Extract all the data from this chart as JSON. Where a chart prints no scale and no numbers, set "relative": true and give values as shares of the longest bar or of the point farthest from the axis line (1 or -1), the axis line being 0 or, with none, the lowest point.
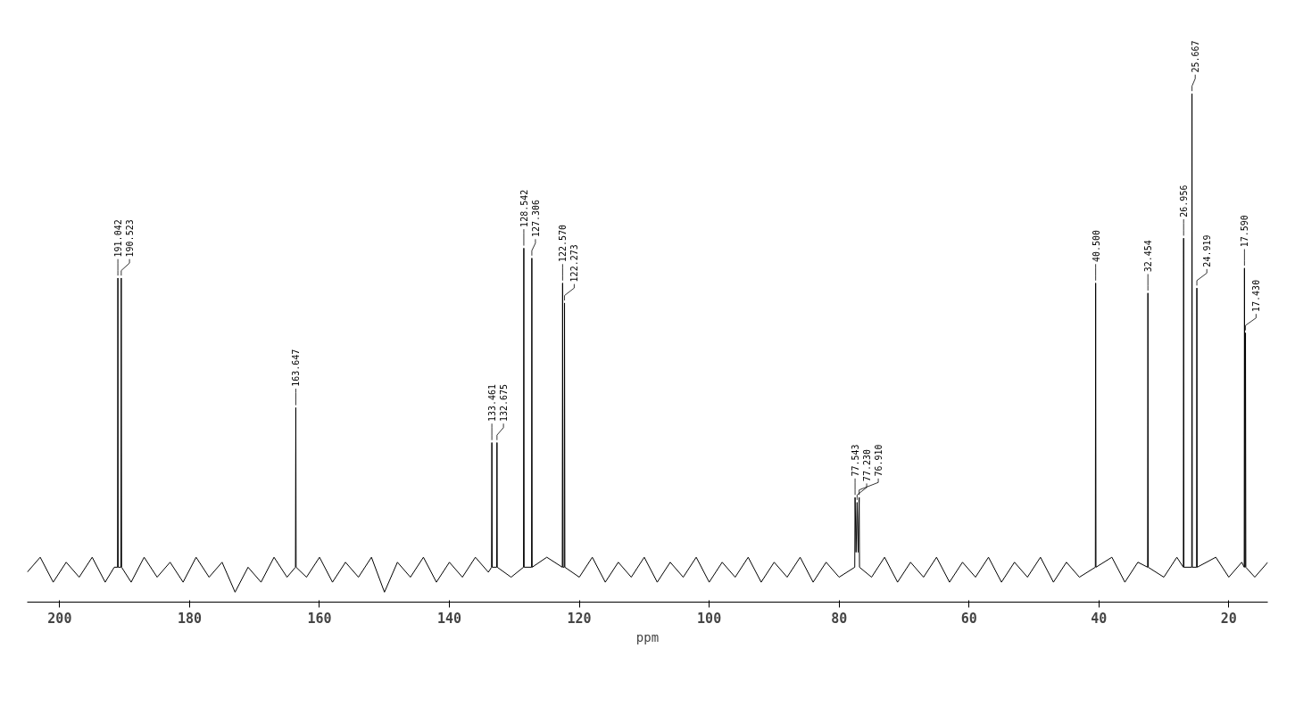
{
  "chart_data": {
    "type": "line",
    "relative": true,
    "xlabel": "ppm",
    "xlim": [
      205,
      14
    ],
    "xticks": [
      200,
      180,
      160,
      140,
      120,
      100,
      80,
      60,
      40,
      20
    ],
    "line_style": "solid",
    "series": [
      {
        "color": "#000000",
        "x": [
          205,
          203,
          201,
          199,
          197,
          195,
          193,
          191.6,
          191.09,
          191.042,
          191.0,
          190.57,
          190.523,
          190.47,
          189,
          187,
          185,
          183,
          181,
          179,
          177,
          175,
          173,
          171,
          169,
          167,
          165,
          163.7,
          163.647,
          163.6,
          162,
          160,
          158,
          156,
          154,
          152,
          150,
          148,
          146,
          144,
          142,
          140,
          138,
          136,
          134,
          133.51,
          133.461,
          133.41,
          132.72,
          132.675,
          132.63,
          130.5,
          128.59,
          128.542,
          128.49,
          127.35,
          127.306,
          127.26,
          125,
          122.62,
          122.57,
          122.52,
          122.32,
          122.273,
          122.22,
          120,
          118,
          116,
          114,
          112,
          110,
          108,
          106,
          104,
          102,
          100,
          98,
          96,
          94,
          92,
          90,
          88,
          86,
          84,
          82,
          80,
          77.59,
          77.543,
          77.39,
          77.23,
          77.07,
          76.91,
          76.86,
          75,
          73,
          71,
          69,
          67,
          65,
          63,
          61,
          59,
          57,
          55,
          53,
          51,
          49,
          47,
          45,
          43,
          40.55,
          40.5,
          40.45,
          38,
          36,
          34,
          32.5,
          32.454,
          32.41,
          30,
          28,
          27.0,
          26.956,
          26.91,
          25.71,
          25.667,
          25.62,
          24.96,
          24.919,
          24.87,
          22,
          20,
          18,
          17.63,
          17.59,
          17.51,
          17.43,
          17.38,
          16,
          14
        ],
        "values": [
          0.04,
          0.07,
          0.02,
          0.06,
          0.03,
          0.07,
          0.02,
          0.05,
          0.05,
          0.63,
          0.05,
          0.05,
          0.63,
          0.05,
          0.02,
          0.07,
          0.03,
          0.06,
          0.02,
          0.07,
          0.03,
          0.06,
          0.0,
          0.05,
          0.02,
          0.07,
          0.03,
          0.05,
          0.37,
          0.05,
          0.03,
          0.07,
          0.02,
          0.06,
          0.03,
          0.07,
          0.0,
          0.06,
          0.03,
          0.07,
          0.02,
          0.06,
          0.03,
          0.07,
          0.04,
          0.05,
          0.3,
          0.05,
          0.05,
          0.3,
          0.05,
          0.03,
          0.05,
          0.69,
          0.05,
          0.05,
          0.67,
          0.05,
          0.07,
          0.05,
          0.62,
          0.05,
          0.05,
          0.58,
          0.05,
          0.03,
          0.07,
          0.02,
          0.06,
          0.03,
          0.07,
          0.02,
          0.06,
          0.03,
          0.07,
          0.02,
          0.06,
          0.03,
          0.07,
          0.02,
          0.06,
          0.03,
          0.07,
          0.02,
          0.06,
          0.03,
          0.05,
          0.19,
          0.08,
          0.18,
          0.08,
          0.19,
          0.05,
          0.03,
          0.07,
          0.02,
          0.06,
          0.03,
          0.07,
          0.02,
          0.06,
          0.03,
          0.07,
          0.02,
          0.06,
          0.03,
          0.07,
          0.02,
          0.06,
          0.03,
          0.05,
          0.62,
          0.05,
          0.07,
          0.02,
          0.06,
          0.05,
          0.6,
          0.05,
          0.03,
          0.07,
          0.05,
          0.71,
          0.05,
          0.05,
          1,
          0.05,
          0.05,
          0.61,
          0.05,
          0.07,
          0.03,
          0.06,
          0.05,
          0.65,
          0.05,
          0.52,
          0.05,
          0.03,
          0.06
        ]
      }
    ],
    "annotations": [
      {
        "text": "191.042",
        "x": 191.042,
        "y": 0.63
      },
      {
        "text": "190.523",
        "x": 190.523,
        "y": 0.63
      },
      {
        "text": "163.647",
        "x": 163.647,
        "y": 0.37
      },
      {
        "text": "133.461",
        "x": 133.461,
        "y": 0.3
      },
      {
        "text": "132.675",
        "x": 132.675,
        "y": 0.3
      },
      {
        "text": "128.542",
        "x": 128.542,
        "y": 0.69
      },
      {
        "text": "127.306",
        "x": 127.306,
        "y": 0.67
      },
      {
        "text": "122.570",
        "x": 122.57,
        "y": 0.62
      },
      {
        "text": "122.273",
        "x": 122.273,
        "y": 0.58
      },
      {
        "text": "77.543",
        "x": 77.543,
        "y": 0.19
      },
      {
        "text": "77.230",
        "x": 77.23,
        "y": 0.18
      },
      {
        "text": "76.910",
        "x": 76.91,
        "y": 0.19
      },
      {
        "text": "40.500",
        "x": 40.5,
        "y": 0.62
      },
      {
        "text": "32.454",
        "x": 32.454,
        "y": 0.6
      },
      {
        "text": "26.956",
        "x": 26.956,
        "y": 0.71
      },
      {
        "text": "25.667",
        "x": 25.667,
        "y": 1
      },
      {
        "text": "24.919",
        "x": 24.919,
        "y": 0.61
      },
      {
        "text": "17.590",
        "x": 17.59,
        "y": 0.65
      },
      {
        "text": "17.430",
        "x": 17.43,
        "y": 0.52
      }
    ]
  }
}
